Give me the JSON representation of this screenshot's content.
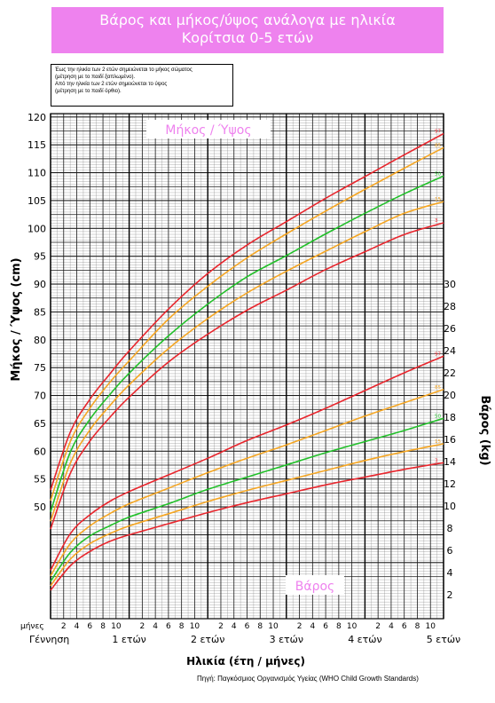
{
  "header": {
    "title_line1": "Βάρος και μήκος/ύψος ανάλογα με ηλικία",
    "title_line2": "Κορίτσια 0-5 ετών",
    "bg_color": "#ee82ee"
  },
  "note": {
    "line1": "Έως την ηλικία των 2 ετών σημειώνεται το μήκος σώματος",
    "line2": "(μέτρηση με το παιδί ξαπλωμένο).",
    "line3": "Από την ηλικία των 2 ετών σημειώνεται το ύψος",
    "line4": "(μέτρηση με το παιδί όρθιο)."
  },
  "source": "Πηγή: Παγκόσμιος Οργανισμός Υγείας (WHO Child Growth Standards)",
  "chart_data": {
    "type": "line",
    "length_label": "Μήκος / Ύψος",
    "weight_label": "Βάρος",
    "xlabel": "Ηλικία (έτη / μήνες)",
    "ylabel_left": "Μήκος / Ύψος (cm)",
    "ylabel_right": "Βάρος (kg)",
    "months_label": "μήνες",
    "x_unit": "months",
    "xlim": [
      0,
      60
    ],
    "ylim_length": [
      35,
      125
    ],
    "ylim_weight": [
      -4,
      32
    ],
    "left_ticks": [
      50,
      55,
      60,
      65,
      70,
      75,
      80,
      85,
      90,
      95,
      100,
      105,
      110,
      115,
      120
    ],
    "right_ticks": [
      2,
      4,
      6,
      8,
      10,
      12,
      14,
      16,
      18,
      20,
      22,
      24,
      26,
      28,
      30
    ],
    "month_ticks": [
      "2",
      "4",
      "6",
      "8",
      "10"
    ],
    "year_labels": [
      "Γέννηση",
      "1 ετών",
      "2 ετών",
      "3 ετών",
      "4 ετών",
      "5 ετών"
    ],
    "percentile_colors": {
      "3": "#e8262d",
      "15": "#f5a623",
      "50": "#22c02a",
      "85": "#f5a623",
      "97": "#e8262d"
    },
    "length_series": [
      {
        "name": "97",
        "x": [
          0,
          3,
          6,
          9,
          12,
          18,
          24,
          30,
          36,
          42,
          48,
          54,
          60
        ],
        "values": [
          53.0,
          63.4,
          69.3,
          73.8,
          78.0,
          85.5,
          91.9,
          97.0,
          101.2,
          105.4,
          109.3,
          113.2,
          117.0
        ]
      },
      {
        "name": "85",
        "x": [
          0,
          3,
          6,
          9,
          12,
          18,
          24,
          30,
          36,
          42,
          48,
          54,
          60
        ],
        "values": [
          51.1,
          61.7,
          67.7,
          72.3,
          76.2,
          83.7,
          89.6,
          94.7,
          99.0,
          103.1,
          107.0,
          110.8,
          114.5
        ]
      },
      {
        "name": "50",
        "x": [
          0,
          3,
          6,
          9,
          12,
          18,
          24,
          30,
          36,
          42,
          48,
          54,
          60
        ],
        "values": [
          49.1,
          59.8,
          65.7,
          70.1,
          74.0,
          80.7,
          86.4,
          91.3,
          95.1,
          99.0,
          102.7,
          106.2,
          109.4
        ]
      },
      {
        "name": "15",
        "x": [
          0,
          3,
          6,
          9,
          12,
          18,
          24,
          30,
          36,
          42,
          48,
          54,
          60
        ],
        "values": [
          47.4,
          57.8,
          63.8,
          68.1,
          71.9,
          78.4,
          83.8,
          88.4,
          92.3,
          95.9,
          99.4,
          102.7,
          104.8
        ]
      },
      {
        "name": "3",
        "x": [
          0,
          3,
          6,
          9,
          12,
          18,
          24,
          30,
          36,
          42,
          48,
          54,
          60
        ],
        "values": [
          46.0,
          56.0,
          61.8,
          66.0,
          69.7,
          76.0,
          81.0,
          85.3,
          88.9,
          92.6,
          95.8,
          98.9,
          101.0
        ]
      }
    ],
    "weight_series": [
      {
        "name": "97",
        "x": [
          0,
          3,
          6,
          9,
          12,
          18,
          24,
          30,
          36,
          42,
          48,
          54,
          60
        ],
        "values": [
          4.2,
          7.5,
          9.2,
          10.4,
          11.3,
          12.8,
          14.3,
          15.9,
          17.3,
          18.8,
          20.4,
          22.0,
          23.5
        ]
      },
      {
        "name": "85",
        "x": [
          0,
          3,
          6,
          9,
          12,
          18,
          24,
          30,
          36,
          42,
          48,
          54,
          60
        ],
        "values": [
          3.7,
          6.6,
          8.2,
          9.3,
          10.2,
          11.6,
          13.0,
          14.3,
          15.5,
          16.8,
          18.1,
          19.3,
          20.5
        ]
      },
      {
        "name": "50",
        "x": [
          0,
          3,
          6,
          9,
          12,
          18,
          24,
          30,
          36,
          42,
          48,
          54,
          60
        ],
        "values": [
          3.2,
          5.8,
          7.3,
          8.2,
          9.0,
          10.2,
          11.5,
          12.6,
          13.7,
          14.8,
          15.8,
          16.8,
          17.9
        ]
      },
      {
        "name": "15",
        "x": [
          0,
          3,
          6,
          9,
          12,
          18,
          24,
          30,
          36,
          42,
          48,
          54,
          60
        ],
        "values": [
          2.8,
          5.2,
          6.6,
          7.5,
          8.2,
          9.3,
          10.4,
          11.4,
          12.3,
          13.2,
          14.1,
          14.9,
          15.6
        ]
      },
      {
        "name": "3",
        "x": [
          0,
          3,
          6,
          9,
          12,
          18,
          24,
          30,
          36,
          42,
          48,
          54,
          60
        ],
        "values": [
          2.4,
          4.6,
          5.9,
          6.8,
          7.4,
          8.4,
          9.4,
          10.3,
          11.1,
          11.9,
          12.6,
          13.3,
          13.9
        ]
      }
    ]
  }
}
